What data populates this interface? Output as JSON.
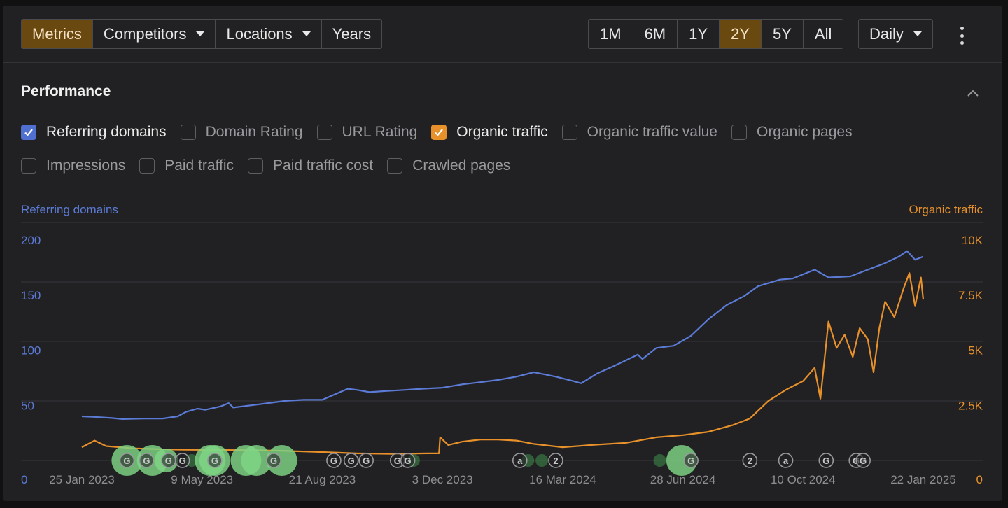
{
  "toolbar": {
    "left_tabs": [
      {
        "label": "Metrics",
        "active": true,
        "dropdown": false
      },
      {
        "label": "Competitors",
        "active": false,
        "dropdown": true
      },
      {
        "label": "Locations",
        "active": false,
        "dropdown": true
      },
      {
        "label": "Years",
        "active": false,
        "dropdown": false
      }
    ],
    "ranges": [
      {
        "label": "1M",
        "active": false
      },
      {
        "label": "6M",
        "active": false
      },
      {
        "label": "1Y",
        "active": false
      },
      {
        "label": "2Y",
        "active": true
      },
      {
        "label": "5Y",
        "active": false
      },
      {
        "label": "All",
        "active": false
      }
    ],
    "granularity": "Daily",
    "more_icon": "kebab-menu-icon"
  },
  "performance": {
    "title": "Performance",
    "collapse_icon": "chevron-up-icon",
    "metrics_row1": [
      {
        "label": "Referring domains",
        "checked": true,
        "color": "#4f6fd1"
      },
      {
        "label": "Domain Rating",
        "checked": false
      },
      {
        "label": "URL Rating",
        "checked": false
      },
      {
        "label": "Organic traffic",
        "checked": true,
        "color": "#e8912a"
      },
      {
        "label": "Organic traffic value",
        "checked": false
      },
      {
        "label": "Organic pages",
        "checked": false
      }
    ],
    "metrics_row2": [
      {
        "label": "Impressions",
        "checked": false
      },
      {
        "label": "Paid traffic",
        "checked": false
      },
      {
        "label": "Paid traffic cost",
        "checked": false
      },
      {
        "label": "Crawled pages",
        "checked": false
      }
    ]
  },
  "chart_data": {
    "type": "line",
    "y_left_label": "Referring domains",
    "y_right_label": "Organic traffic",
    "y_left_ticks": [
      "0",
      "50",
      "100",
      "150",
      "200"
    ],
    "y_right_ticks": [
      "0",
      "2.5K",
      "5K",
      "7.5K",
      "10K"
    ],
    "y_left_range": [
      0,
      200
    ],
    "y_right_range": [
      0,
      10000
    ],
    "x_ticks": [
      "25 Jan 2023",
      "9 May 2023",
      "21 Aug 2023",
      "3 Dec 2023",
      "16 Mar 2024",
      "28 Jun 2024",
      "10 Oct 2024",
      "22 Jan 2025"
    ],
    "x_range": [
      "2023-01-25",
      "2025-01-22"
    ],
    "grid": true,
    "colors": {
      "referring_domains": "#5b7bd6",
      "organic_traffic": "#e8912a",
      "grid": "#38383c",
      "left_axis": "#5b7bd6",
      "right_axis": "#e8912a"
    },
    "series": [
      {
        "name": "Referring domains",
        "axis": "left",
        "points": [
          [
            "2023-01-25",
            40
          ],
          [
            "2023-02-05",
            39.5
          ],
          [
            "2023-02-20",
            38.5
          ],
          [
            "2023-03-01",
            37.5
          ],
          [
            "2023-03-20",
            38
          ],
          [
            "2023-04-05",
            38
          ],
          [
            "2023-04-18",
            40
          ],
          [
            "2023-04-25",
            44
          ],
          [
            "2023-05-05",
            47
          ],
          [
            "2023-05-12",
            46
          ],
          [
            "2023-05-25",
            49
          ],
          [
            "2023-06-01",
            52
          ],
          [
            "2023-06-05",
            48
          ],
          [
            "2023-06-20",
            50
          ],
          [
            "2023-07-05",
            52
          ],
          [
            "2023-07-20",
            54
          ],
          [
            "2023-08-05",
            55
          ],
          [
            "2023-08-21",
            55
          ],
          [
            "2023-09-01",
            60
          ],
          [
            "2023-09-12",
            65
          ],
          [
            "2023-09-20",
            64
          ],
          [
            "2023-10-01",
            62
          ],
          [
            "2023-10-15",
            63
          ],
          [
            "2023-11-01",
            64
          ],
          [
            "2023-11-15",
            65
          ],
          [
            "2023-12-03",
            66
          ],
          [
            "2023-12-20",
            69
          ],
          [
            "2024-01-05",
            71
          ],
          [
            "2024-01-20",
            73
          ],
          [
            "2024-02-05",
            76
          ],
          [
            "2024-02-20",
            80
          ],
          [
            "2024-02-25",
            79
          ],
          [
            "2024-03-10",
            76
          ],
          [
            "2024-03-25",
            72
          ],
          [
            "2024-04-01",
            70
          ],
          [
            "2024-04-15",
            79
          ],
          [
            "2024-04-30",
            86
          ],
          [
            "2024-05-10",
            91
          ],
          [
            "2024-05-20",
            96
          ],
          [
            "2024-05-24",
            92
          ],
          [
            "2024-06-05",
            102
          ],
          [
            "2024-06-20",
            104
          ],
          [
            "2024-07-05",
            113
          ],
          [
            "2024-07-20",
            128
          ],
          [
            "2024-08-05",
            141
          ],
          [
            "2024-08-20",
            149
          ],
          [
            "2024-09-01",
            158
          ],
          [
            "2024-09-20",
            164
          ],
          [
            "2024-10-01",
            165
          ],
          [
            "2024-10-20",
            173
          ],
          [
            "2024-11-01",
            166
          ],
          [
            "2024-11-20",
            167
          ],
          [
            "2024-12-05",
            173
          ],
          [
            "2024-12-20",
            179
          ],
          [
            "2025-01-01",
            185
          ],
          [
            "2025-01-08",
            190
          ],
          [
            "2025-01-15",
            182
          ],
          [
            "2025-01-22",
            185
          ]
        ]
      },
      {
        "name": "Organic traffic",
        "axis": "right",
        "points": [
          [
            "2023-01-25",
            600
          ],
          [
            "2023-02-05",
            900
          ],
          [
            "2023-02-15",
            650
          ],
          [
            "2023-03-10",
            550
          ],
          [
            "2023-04-10",
            500
          ],
          [
            "2023-05-09",
            480
          ],
          [
            "2023-06-10",
            470
          ],
          [
            "2023-07-10",
            450
          ],
          [
            "2023-08-21",
            380
          ],
          [
            "2023-09-20",
            320
          ],
          [
            "2023-10-20",
            300
          ],
          [
            "2023-11-20",
            320
          ],
          [
            "2023-11-30",
            320
          ],
          [
            "2023-12-01",
            1050
          ],
          [
            "2023-12-08",
            700
          ],
          [
            "2023-12-20",
            850
          ],
          [
            "2024-01-05",
            950
          ],
          [
            "2024-01-20",
            950
          ],
          [
            "2024-02-05",
            900
          ],
          [
            "2024-02-20",
            750
          ],
          [
            "2024-03-16",
            600
          ],
          [
            "2024-04-10",
            700
          ],
          [
            "2024-05-10",
            800
          ],
          [
            "2024-06-05",
            1050
          ],
          [
            "2024-06-28",
            1150
          ],
          [
            "2024-07-20",
            1300
          ],
          [
            "2024-08-10",
            1600
          ],
          [
            "2024-08-25",
            1900
          ],
          [
            "2024-09-10",
            2700
          ],
          [
            "2024-09-25",
            3200
          ],
          [
            "2024-10-10",
            3600
          ],
          [
            "2024-10-20",
            4200
          ],
          [
            "2024-10-25",
            2800
          ],
          [
            "2024-11-01",
            6300
          ],
          [
            "2024-11-08",
            5100
          ],
          [
            "2024-11-15",
            5700
          ],
          [
            "2024-11-22",
            4700
          ],
          [
            "2024-11-28",
            6000
          ],
          [
            "2024-12-05",
            5500
          ],
          [
            "2024-12-10",
            4000
          ],
          [
            "2024-12-15",
            6000
          ],
          [
            "2024-12-20",
            7200
          ],
          [
            "2024-12-28",
            6500
          ],
          [
            "2025-01-05",
            7800
          ],
          [
            "2025-01-10",
            8500
          ],
          [
            "2025-01-15",
            7000
          ],
          [
            "2025-01-20",
            8300
          ],
          [
            "2025-01-22",
            7300
          ]
        ]
      }
    ],
    "event_markers": [
      {
        "date": "2023-03-05",
        "glyph": "G"
      },
      {
        "date": "2023-03-22",
        "glyph": "G"
      },
      {
        "date": "2023-04-10",
        "glyph": "G"
      },
      {
        "date": "2023-04-22",
        "glyph": "G"
      },
      {
        "date": "2023-05-20",
        "glyph": "G"
      },
      {
        "date": "2023-07-10",
        "glyph": "G"
      },
      {
        "date": "2023-08-31",
        "glyph": "G"
      },
      {
        "date": "2023-09-15",
        "glyph": "G"
      },
      {
        "date": "2023-09-28",
        "glyph": "G"
      },
      {
        "date": "2023-10-25",
        "glyph": "G"
      },
      {
        "date": "2023-11-03",
        "glyph": "G"
      },
      {
        "date": "2024-02-08",
        "glyph": "a"
      },
      {
        "date": "2024-03-10",
        "glyph": "2"
      },
      {
        "date": "2024-07-05",
        "glyph": "G"
      },
      {
        "date": "2024-08-25",
        "glyph": "2"
      },
      {
        "date": "2024-09-25",
        "glyph": "a"
      },
      {
        "date": "2024-10-30",
        "glyph": "G"
      },
      {
        "date": "2024-11-25",
        "glyph": "G"
      },
      {
        "date": "2024-12-01",
        "glyph": "G"
      }
    ],
    "activity_bubbles": [
      {
        "date": "2023-03-05",
        "size": 3
      },
      {
        "date": "2023-03-27",
        "size": 3
      },
      {
        "date": "2023-04-08",
        "size": 2
      },
      {
        "date": "2023-04-30",
        "size": 1
      },
      {
        "date": "2023-05-16",
        "size": 3
      },
      {
        "date": "2023-05-20",
        "size": 3
      },
      {
        "date": "2023-06-16",
        "size": 3
      },
      {
        "date": "2023-06-25",
        "size": 3
      },
      {
        "date": "2023-07-17",
        "size": 3
      },
      {
        "date": "2023-11-08",
        "size": 1
      },
      {
        "date": "2024-02-15",
        "size": 1
      },
      {
        "date": "2024-02-27",
        "size": 1
      },
      {
        "date": "2024-06-08",
        "size": 1
      },
      {
        "date": "2024-06-27",
        "size": 3
      }
    ]
  }
}
